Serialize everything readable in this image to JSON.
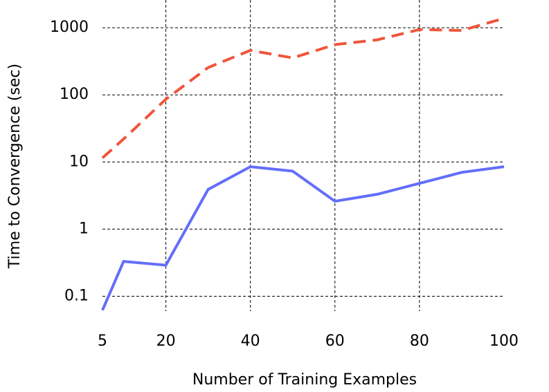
{
  "chart_data": {
    "type": "line",
    "x_label": "Number of Training Examples",
    "y_label": "Time to Convergence (sec)",
    "x": [
      5,
      10,
      20,
      30,
      40,
      50,
      60,
      70,
      80,
      90,
      100
    ],
    "series": [
      {
        "color": "#636efa",
        "dash": false,
        "values": [
          0.062,
          0.33,
          0.29,
          3.9,
          8.5,
          7.3,
          2.6,
          3.3,
          4.8,
          7.0,
          8.5
        ]
      },
      {
        "color": "#ef553b",
        "dash": true,
        "values": [
          11.5,
          22,
          86,
          255,
          460,
          355,
          560,
          660,
          940,
          910,
          1380
        ]
      }
    ],
    "xlim": [
      5,
      100
    ],
    "xticks": [
      5,
      20,
      40,
      60,
      80,
      100
    ],
    "ylim": [
      0.06,
      1500
    ],
    "yticks": [
      0.1,
      1,
      10,
      100,
      1000
    ],
    "yscale": "log",
    "grid": true
  }
}
